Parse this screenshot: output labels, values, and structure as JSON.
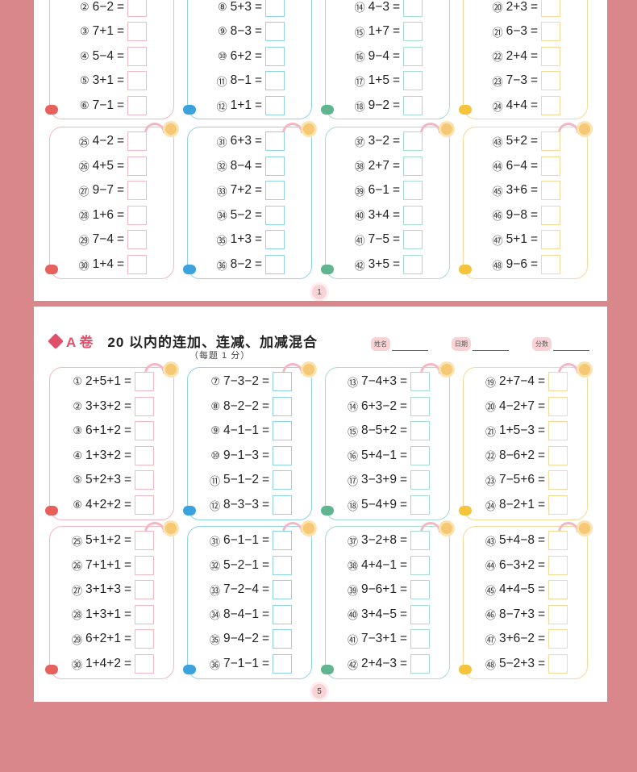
{
  "colors": {
    "background": "#d9878a",
    "pink": "#f3b9c2",
    "blue": "#8fd3e6",
    "teal": "#a5dcd4",
    "yellow": "#f6d99a"
  },
  "page1": {
    "page_number": "1",
    "panels": [
      {
        "theme": "pink",
        "icon": "crab-icon",
        "problems": [
          [
            "②",
            "6−2"
          ],
          [
            "③",
            "7+1"
          ],
          [
            "④",
            "5−4"
          ],
          [
            "⑤",
            "3+1"
          ],
          [
            "⑥",
            "7−1"
          ]
        ]
      },
      {
        "theme": "blue",
        "icon": "castle-icon",
        "problems": [
          [
            "⑧",
            "5+3"
          ],
          [
            "⑨",
            "8−3"
          ],
          [
            "⑩",
            "6+2"
          ],
          [
            "⑪",
            "8−1"
          ],
          [
            "⑫",
            "1+1"
          ]
        ]
      },
      {
        "theme": "teal",
        "icon": "bowl-icon",
        "problems": [
          [
            "⑭",
            "4−3"
          ],
          [
            "⑮",
            "1+7"
          ],
          [
            "⑯",
            "9−4"
          ],
          [
            "⑰",
            "1+5"
          ],
          [
            "⑱",
            "9−2"
          ]
        ]
      },
      {
        "theme": "yellow",
        "icon": "chick-icon",
        "problems": [
          [
            "⑳",
            "2+3"
          ],
          [
            "㉑",
            "6−3"
          ],
          [
            "㉒",
            "2+4"
          ],
          [
            "㉓",
            "7−3"
          ],
          [
            "㉔",
            "4+4"
          ]
        ]
      },
      {
        "theme": "pink",
        "icon": "crab-icon",
        "problems": [
          [
            "㉕",
            "4−2"
          ],
          [
            "㉖",
            "4+5"
          ],
          [
            "㉗",
            "9−7"
          ],
          [
            "㉘",
            "1+6"
          ],
          [
            "㉙",
            "7−4"
          ],
          [
            "㉚",
            "1+4"
          ]
        ]
      },
      {
        "theme": "blue",
        "icon": "castle-icon",
        "problems": [
          [
            "㉛",
            "6+3"
          ],
          [
            "㉜",
            "8−4"
          ],
          [
            "㉝",
            "7+2"
          ],
          [
            "㉞",
            "5−2"
          ],
          [
            "㉟",
            "1+3"
          ],
          [
            "㊱",
            "8−2"
          ]
        ]
      },
      {
        "theme": "teal",
        "icon": "bowl-icon",
        "problems": [
          [
            "㊲",
            "3−2"
          ],
          [
            "㊳",
            "2+7"
          ],
          [
            "㊴",
            "6−1"
          ],
          [
            "㊵",
            "3+4"
          ],
          [
            "㊶",
            "7−5"
          ],
          [
            "㊷",
            "3+5"
          ]
        ]
      },
      {
        "theme": "yellow",
        "icon": "chick-icon",
        "problems": [
          [
            "㊸",
            "5+2"
          ],
          [
            "㊹",
            "6−4"
          ],
          [
            "㊺",
            "3+6"
          ],
          [
            "㊻",
            "9−8"
          ],
          [
            "㊼",
            "5+1"
          ],
          [
            "㊽",
            "9−6"
          ]
        ]
      }
    ]
  },
  "page2": {
    "label": "A 卷",
    "title": "20 以内的连加、连减、加减混合",
    "subtitle": "（每题 1 分）",
    "fields": [
      "姓名",
      "日期",
      "分数"
    ],
    "page_number": "5",
    "panels": [
      {
        "theme": "pink",
        "icon": "crab-icon",
        "problems": [
          [
            "①",
            "2+5+1"
          ],
          [
            "②",
            "3+3+2"
          ],
          [
            "③",
            "6+1+2"
          ],
          [
            "④",
            "1+3+2"
          ],
          [
            "⑤",
            "5+2+3"
          ],
          [
            "⑥",
            "4+2+2"
          ]
        ]
      },
      {
        "theme": "blue",
        "icon": "castle-icon",
        "problems": [
          [
            "⑦",
            "7−3−2"
          ],
          [
            "⑧",
            "8−2−2"
          ],
          [
            "⑨",
            "4−1−1"
          ],
          [
            "⑩",
            "9−1−3"
          ],
          [
            "⑪",
            "5−1−2"
          ],
          [
            "⑫",
            "8−3−3"
          ]
        ]
      },
      {
        "theme": "teal",
        "icon": "bowl-icon",
        "problems": [
          [
            "⑬",
            "7−4+3"
          ],
          [
            "⑭",
            "6+3−2"
          ],
          [
            "⑮",
            "8−5+2"
          ],
          [
            "⑯",
            "5+4−1"
          ],
          [
            "⑰",
            "3−3+9"
          ],
          [
            "⑱",
            "5−4+9"
          ]
        ]
      },
      {
        "theme": "yellow",
        "icon": "chick-icon",
        "problems": [
          [
            "⑲",
            "2+7−4"
          ],
          [
            "⑳",
            "4−2+7"
          ],
          [
            "㉑",
            "1+5−3"
          ],
          [
            "㉒",
            "8−6+2"
          ],
          [
            "㉓",
            "7−5+6"
          ],
          [
            "㉔",
            "8−2+1"
          ]
        ]
      },
      {
        "theme": "pink",
        "icon": "crab-icon",
        "problems": [
          [
            "㉕",
            "5+1+2"
          ],
          [
            "㉖",
            "7+1+1"
          ],
          [
            "㉗",
            "3+1+3"
          ],
          [
            "㉘",
            "1+3+1"
          ],
          [
            "㉙",
            "6+2+1"
          ],
          [
            "㉚",
            "1+4+2"
          ]
        ]
      },
      {
        "theme": "blue",
        "icon": "castle-icon",
        "problems": [
          [
            "㉛",
            "6−1−1"
          ],
          [
            "㉜",
            "5−2−1"
          ],
          [
            "㉝",
            "7−2−4"
          ],
          [
            "㉞",
            "8−4−1"
          ],
          [
            "㉟",
            "9−4−2"
          ],
          [
            "㊱",
            "7−1−1"
          ]
        ]
      },
      {
        "theme": "teal",
        "icon": "bowl-icon",
        "problems": [
          [
            "㊲",
            "3−2+8"
          ],
          [
            "㊳",
            "4+4−1"
          ],
          [
            "㊴",
            "9−6+1"
          ],
          [
            "㊵",
            "3+4−5"
          ],
          [
            "㊶",
            "7−3+1"
          ],
          [
            "㊷",
            "2+4−3"
          ]
        ]
      },
      {
        "theme": "yellow",
        "icon": "chick-icon",
        "problems": [
          [
            "㊸",
            "5+4−8"
          ],
          [
            "㊹",
            "6−3+2"
          ],
          [
            "㊺",
            "4+4−5"
          ],
          [
            "㊻",
            "8−7+3"
          ],
          [
            "㊼",
            "3+6−2"
          ],
          [
            "㊽",
            "5−2+3"
          ]
        ]
      }
    ]
  }
}
